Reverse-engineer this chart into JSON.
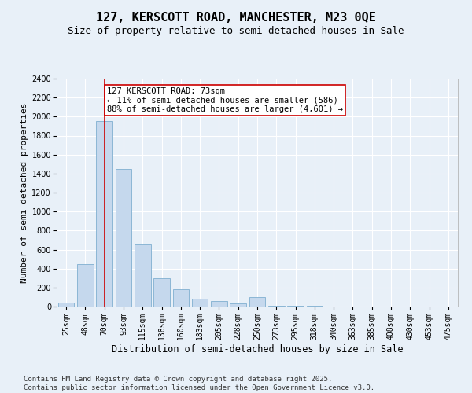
{
  "title": "127, KERSCOTT ROAD, MANCHESTER, M23 0QE",
  "subtitle": "Size of property relative to semi-detached houses in Sale",
  "xlabel": "Distribution of semi-detached houses by size in Sale",
  "ylabel": "Number of semi-detached properties",
  "bar_color": "#c5d8ed",
  "bar_edge_color": "#7fafd0",
  "bins": [
    "25sqm",
    "48sqm",
    "70sqm",
    "93sqm",
    "115sqm",
    "138sqm",
    "160sqm",
    "183sqm",
    "205sqm",
    "228sqm",
    "250sqm",
    "273sqm",
    "295sqm",
    "318sqm",
    "340sqm",
    "363sqm",
    "385sqm",
    "408sqm",
    "430sqm",
    "453sqm",
    "475sqm"
  ],
  "values": [
    40,
    450,
    1950,
    1450,
    650,
    300,
    185,
    80,
    55,
    35,
    100,
    5,
    5,
    5,
    0,
    0,
    0,
    0,
    0,
    0,
    0
  ],
  "property_bin_index": 2,
  "vline_color": "#cc0000",
  "annotation_text": "127 KERSCOTT ROAD: 73sqm\n← 11% of semi-detached houses are smaller (586)\n88% of semi-detached houses are larger (4,601) →",
  "annotation_box_color": "#ffffff",
  "annotation_box_edge": "#cc0000",
  "ylim": [
    0,
    2400
  ],
  "yticks": [
    0,
    200,
    400,
    600,
    800,
    1000,
    1200,
    1400,
    1600,
    1800,
    2000,
    2200,
    2400
  ],
  "footer_text": "Contains HM Land Registry data © Crown copyright and database right 2025.\nContains public sector information licensed under the Open Government Licence v3.0.",
  "background_color": "#e8f0f8",
  "plot_bg_color": "#e8f0f8",
  "grid_color": "#ffffff",
  "title_fontsize": 11,
  "subtitle_fontsize": 9,
  "annotation_fontsize": 7.5,
  "ylabel_fontsize": 8,
  "xlabel_fontsize": 8.5,
  "footer_fontsize": 6.5,
  "tick_fontsize": 7
}
